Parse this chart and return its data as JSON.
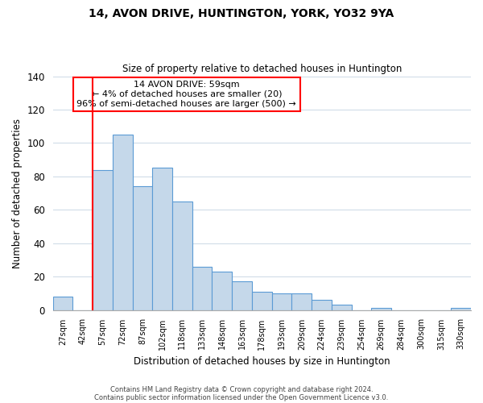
{
  "title": "14, AVON DRIVE, HUNTINGTON, YORK, YO32 9YA",
  "subtitle": "Size of property relative to detached houses in Huntington",
  "xlabel": "Distribution of detached houses by size in Huntington",
  "ylabel": "Number of detached properties",
  "bar_labels": [
    "27sqm",
    "42sqm",
    "57sqm",
    "72sqm",
    "87sqm",
    "102sqm",
    "118sqm",
    "133sqm",
    "148sqm",
    "163sqm",
    "178sqm",
    "193sqm",
    "209sqm",
    "224sqm",
    "239sqm",
    "254sqm",
    "269sqm",
    "284sqm",
    "300sqm",
    "315sqm",
    "330sqm"
  ],
  "bar_values": [
    8,
    0,
    84,
    105,
    74,
    85,
    65,
    26,
    23,
    17,
    11,
    10,
    10,
    6,
    3,
    0,
    1,
    0,
    0,
    0,
    1
  ],
  "bar_color": "#c5d8ea",
  "bar_edge_color": "#5b9bd5",
  "red_line_index": 2,
  "ylim": [
    0,
    140
  ],
  "yticks": [
    0,
    20,
    40,
    60,
    80,
    100,
    120,
    140
  ],
  "annotation_title": "14 AVON DRIVE: 59sqm",
  "annotation_line1": "← 4% of detached houses are smaller (20)",
  "annotation_line2": "96% of semi-detached houses are larger (500) →",
  "footer_line1": "Contains HM Land Registry data © Crown copyright and database right 2024.",
  "footer_line2": "Contains public sector information licensed under the Open Government Licence v3.0.",
  "bg_color": "#ffffff",
  "grid_color": "#d0dce8"
}
